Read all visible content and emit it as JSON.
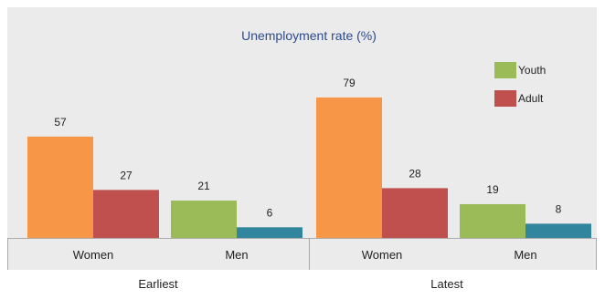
{
  "chart_data": {
    "type": "bar",
    "title": "Unemployment rate (%)",
    "groups": [
      {
        "label": "Earliest",
        "categories": [
          {
            "label": "Women",
            "bars": [
              {
                "series": "Youth",
                "value": 57,
                "color": "#F79646"
              },
              {
                "series": "Adult",
                "value": 27,
                "color": "#C0504D"
              }
            ]
          },
          {
            "label": "Men",
            "bars": [
              {
                "series": "Youth",
                "value": 21,
                "color": "#9BBB59"
              },
              {
                "series": "Adult",
                "value": 6,
                "color": "#31859C"
              }
            ]
          }
        ]
      },
      {
        "label": "Latest",
        "categories": [
          {
            "label": "Women",
            "bars": [
              {
                "series": "Youth",
                "value": 79,
                "color": "#F79646"
              },
              {
                "series": "Adult",
                "value": 28,
                "color": "#C0504D"
              }
            ]
          },
          {
            "label": "Men",
            "bars": [
              {
                "series": "Youth",
                "value": 19,
                "color": "#9BBB59"
              },
              {
                "series": "Adult",
                "value": 8,
                "color": "#31859C"
              }
            ]
          }
        ]
      }
    ],
    "legend": [
      {
        "name": "Youth",
        "color": "#9BBB59"
      },
      {
        "name": "Adult",
        "color": "#C0504D"
      }
    ],
    "legend_position": "top-right",
    "ylim": [
      0,
      100
    ],
    "grid": false,
    "colors": {
      "background": "#EBEBEB",
      "title": "#2E4A8C",
      "text": "#222222",
      "axis": "#AAAAAA"
    }
  }
}
